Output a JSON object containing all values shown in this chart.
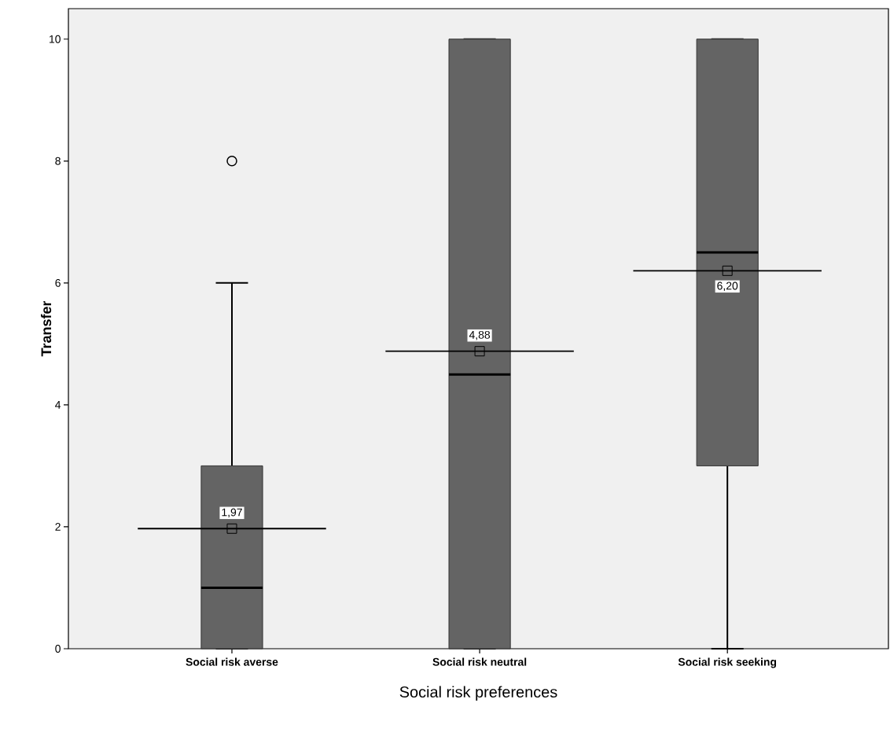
{
  "chart_data": {
    "type": "box",
    "xlabel": "Social risk preferences",
    "ylabel": "Transfer",
    "color": "#646464",
    "categories": [
      "Social risk averse",
      "Social risk neutral",
      "Social risk seeking"
    ],
    "boxes": [
      {
        "low": 0,
        "q1": 0,
        "median": 1,
        "q3": 3,
        "high": 6,
        "mean": 1.97,
        "outliers": [
          8
        ]
      },
      {
        "low": 0,
        "q1": 0,
        "median": 4.5,
        "q3": 10,
        "high": 10,
        "mean": 4.88
      },
      {
        "low": 0,
        "q1": 3,
        "median": 6.5,
        "q3": 10,
        "high": 10,
        "mean": 6.2
      }
    ],
    "ylim": [
      0,
      10.5
    ],
    "yticks": [
      0,
      2,
      4,
      6,
      8,
      10
    ],
    "ref_lines": [
      {
        "axis": "y",
        "value": 1.97,
        "label": "1,97",
        "color": "#000000"
      },
      {
        "axis": "y",
        "value": 4.88,
        "label": "4,88",
        "color": "#000000"
      },
      {
        "axis": "y",
        "value": 6.2,
        "label": "6,20",
        "color": "#000000"
      }
    ]
  }
}
